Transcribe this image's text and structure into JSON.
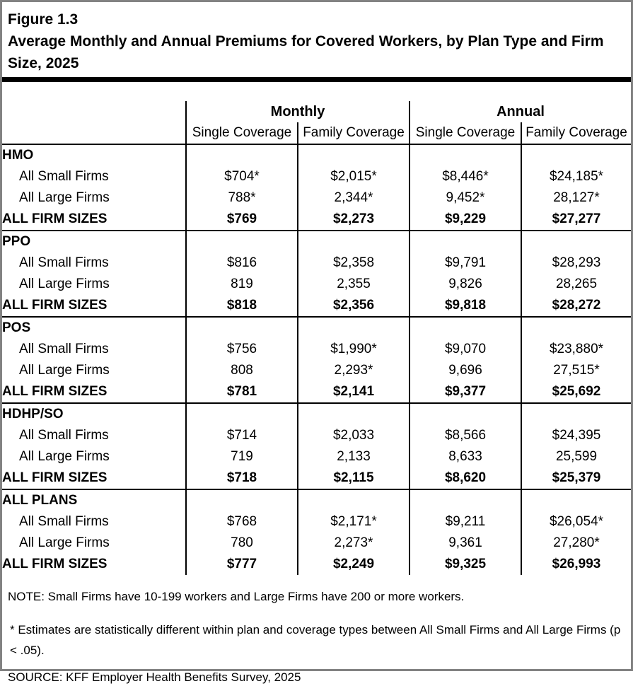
{
  "header": {
    "figure_label": "Figure 1.3",
    "title": "Average Monthly and Annual Premiums for Covered Workers, by Plan Type and Firm Size, 2025"
  },
  "table": {
    "col_groups": [
      {
        "label": "Monthly"
      },
      {
        "label": "Annual"
      }
    ],
    "col_headers": [
      "Single Coverage",
      "Family Coverage",
      "Single Coverage",
      "Family Coverage"
    ],
    "sections": [
      {
        "plan": "HMO",
        "rows": [
          {
            "label": "All Small Firms",
            "values": [
              "$704*",
              "$2,015*",
              "$8,446*",
              "$24,185*"
            ]
          },
          {
            "label": "All Large Firms",
            "values": [
              "788*",
              "2,344*",
              "9,452*",
              "28,127*"
            ]
          },
          {
            "label": "ALL FIRM SIZES",
            "values": [
              "$769",
              "$2,273",
              "$9,229",
              "$27,277"
            ]
          }
        ]
      },
      {
        "plan": "PPO",
        "rows": [
          {
            "label": "All Small Firms",
            "values": [
              "$816",
              "$2,358",
              "$9,791",
              "$28,293"
            ]
          },
          {
            "label": "All Large Firms",
            "values": [
              "819",
              "2,355",
              "9,826",
              "28,265"
            ]
          },
          {
            "label": "ALL FIRM SIZES",
            "values": [
              "$818",
              "$2,356",
              "$9,818",
              "$28,272"
            ]
          }
        ]
      },
      {
        "plan": "POS",
        "rows": [
          {
            "label": "All Small Firms",
            "values": [
              "$756",
              "$1,990*",
              "$9,070",
              "$23,880*"
            ]
          },
          {
            "label": "All Large Firms",
            "values": [
              "808",
              "2,293*",
              "9,696",
              "27,515*"
            ]
          },
          {
            "label": "ALL FIRM SIZES",
            "values": [
              "$781",
              "$2,141",
              "$9,377",
              "$25,692"
            ]
          }
        ]
      },
      {
        "plan": "HDHP/SO",
        "rows": [
          {
            "label": "All Small Firms",
            "values": [
              "$714",
              "$2,033",
              "$8,566",
              "$24,395"
            ]
          },
          {
            "label": "All Large Firms",
            "values": [
              "719",
              "2,133",
              "8,633",
              "25,599"
            ]
          },
          {
            "label": "ALL FIRM SIZES",
            "values": [
              "$718",
              "$2,115",
              "$8,620",
              "$25,379"
            ]
          }
        ]
      },
      {
        "plan": "ALL PLANS",
        "rows": [
          {
            "label": "All Small Firms",
            "values": [
              "$768",
              "$2,171*",
              "$9,211",
              "$26,054*"
            ]
          },
          {
            "label": "All Large Firms",
            "values": [
              "780",
              "2,273*",
              "9,361",
              "27,280*"
            ]
          },
          {
            "label": "ALL FIRM SIZES",
            "values": [
              "$777",
              "$2,249",
              "$9,325",
              "$26,993"
            ]
          }
        ]
      }
    ]
  },
  "notes": {
    "note": "NOTE: Small Firms have 10-199 workers and Large Firms have 200 or more workers.",
    "estimates": "* Estimates are statistically different within plan and coverage types between All Small Firms and All Large Firms (p < .05).",
    "source": "SOURCE: KFF Employer Health Benefits Survey, 2025"
  }
}
